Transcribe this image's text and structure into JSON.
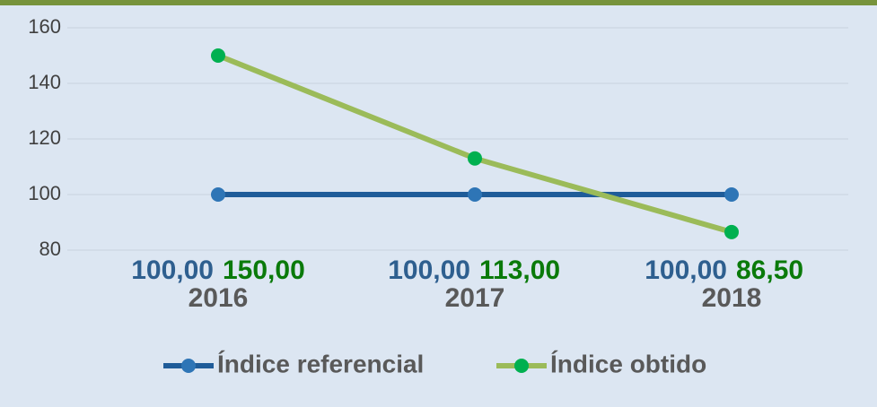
{
  "chart_data": {
    "type": "line",
    "categories": [
      "2016",
      "2017",
      "2018"
    ],
    "series": [
      {
        "name": "Índice referencial",
        "color": "#1f5c99",
        "marker_color": "#2e75b6",
        "label_color": "#2e5f8f",
        "values": [
          100,
          100,
          100
        ],
        "value_labels": [
          "100,00",
          "100,00",
          "100,00"
        ]
      },
      {
        "name": "Índice obtido",
        "color": "#9bbb59",
        "marker_color": "#00b050",
        "label_color": "#0a7a0a",
        "values": [
          150,
          113,
          86.5
        ],
        "value_labels": [
          "150,00",
          "113,00",
          "86,50"
        ]
      }
    ],
    "ylim": [
      80,
      160
    ],
    "yticks": [
      80,
      100,
      120,
      140,
      160
    ],
    "grid": true,
    "legend": "bottom"
  }
}
